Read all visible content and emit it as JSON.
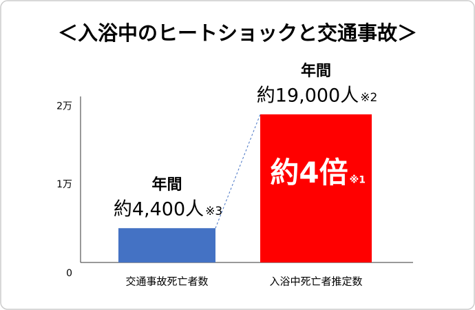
{
  "chart_data": {
    "type": "bar",
    "title": "＜入浴中のヒートショックと交通事故＞",
    "categories": [
      "交通事故死亡者数",
      "入浴中死亡者推定数"
    ],
    "values": [
      4400,
      19000
    ],
    "value_labels": [
      "約4,400人",
      "約19,000人"
    ],
    "period_labels": [
      "年間",
      "年間"
    ],
    "notes": [
      "※3",
      "※2"
    ],
    "colors": [
      "#4472c4",
      "#ff0000"
    ],
    "annotation": {
      "text": "約4倍",
      "note": "※1"
    },
    "ylim": [
      0,
      21300
    ],
    "yticks": [
      0,
      {
        "value": 10000,
        "label": "1万"
      },
      {
        "value": 20000,
        "label": "2万"
      }
    ],
    "grid": false
  }
}
